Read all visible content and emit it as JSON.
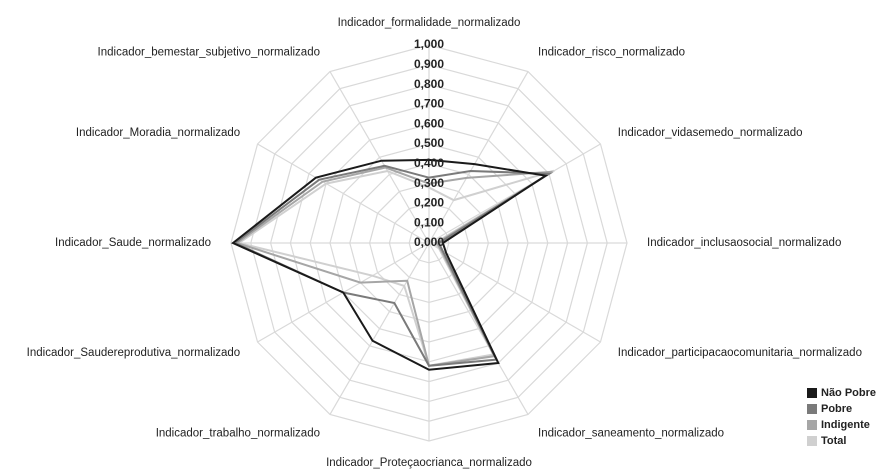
{
  "chart_data": {
    "type": "radar",
    "categories": [
      "Indicador_formalidade_normalizado",
      "Indicador_risco_normalizado",
      "Indicador_vidasemedo_normalizado",
      "Indicador_inclusaosocial_normalizado",
      "Indicador_participacaocomunitaria_normalizado",
      "Indicador_saneamento_normalizado",
      "Indicador_Proteçaocrianca_normalizado",
      "Indicador_trabalho_normalizado",
      "Indicador_Saudereprodutiva_normalizado",
      "Indicador_Saude_normalizado",
      "Indicador_Moradia_normalizado",
      "Indicador_bemestar_subjetivo_normalizado"
    ],
    "series": [
      {
        "name": "Não Pobre",
        "color": "#1a1a1a",
        "values": [
          0.42,
          0.46,
          0.68,
          0.07,
          0.1,
          0.7,
          0.64,
          0.57,
          0.5,
          0.99,
          0.66,
          0.48
        ]
      },
      {
        "name": "Pobre",
        "color": "#7a7a7a",
        "values": [
          0.33,
          0.42,
          0.7,
          0.05,
          0.08,
          0.68,
          0.62,
          0.35,
          0.5,
          0.98,
          0.64,
          0.45
        ]
      },
      {
        "name": "Indigente",
        "color": "#a6a6a6",
        "values": [
          0.3,
          0.38,
          0.72,
          0.04,
          0.07,
          0.66,
          0.62,
          0.22,
          0.4,
          0.97,
          0.62,
          0.44
        ]
      },
      {
        "name": "Total",
        "color": "#d0d0d0",
        "values": [
          0.28,
          0.25,
          0.73,
          0.03,
          0.06,
          0.65,
          0.62,
          0.25,
          0.33,
          0.96,
          0.6,
          0.42
        ]
      }
    ],
    "ylim": [
      0,
      1
    ],
    "yticks": [
      {
        "value": 0,
        "label": "0,000"
      },
      {
        "value": 0.1,
        "label": "0,100"
      },
      {
        "value": 0.2,
        "label": "0,200"
      },
      {
        "value": 0.3,
        "label": "0,300"
      },
      {
        "value": 0.4,
        "label": "0,400"
      },
      {
        "value": 0.5,
        "label": "0,500"
      },
      {
        "value": 0.6,
        "label": "0,600"
      },
      {
        "value": 0.7,
        "label": "0,700"
      },
      {
        "value": 0.8,
        "label": "0,800"
      },
      {
        "value": 0.9,
        "label": "0,900"
      },
      {
        "value": 1,
        "label": "1,000"
      }
    ],
    "grid": true,
    "legend": "lower right"
  }
}
